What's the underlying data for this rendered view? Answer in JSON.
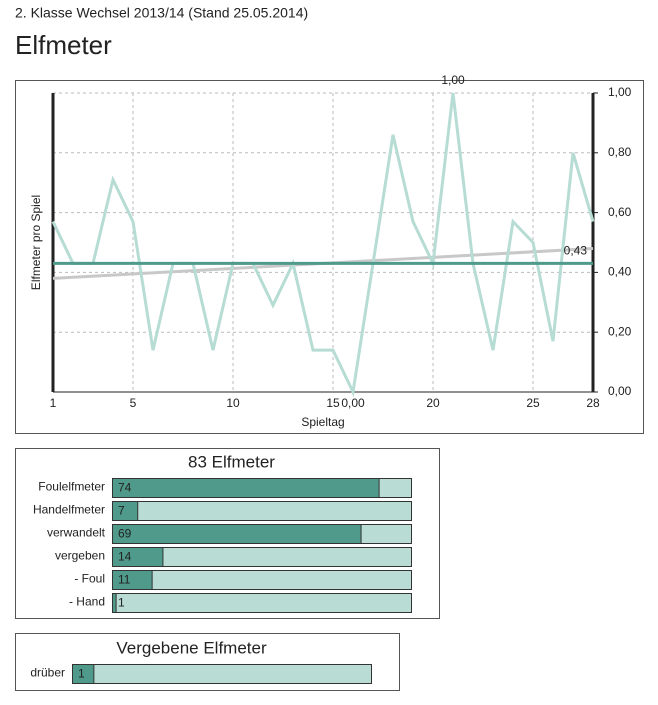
{
  "header": {
    "subtitle": "2. Klasse Wechsel 2013/14 (Stand 25.05.2014)",
    "title": "Elfmeter"
  },
  "chart_data": [
    {
      "type": "line",
      "xlabel": "Spieltag",
      "ylabel": "Elfmeter pro Spiel",
      "x": [
        1,
        2,
        3,
        4,
        5,
        6,
        7,
        8,
        9,
        10,
        11,
        12,
        13,
        14,
        15,
        16,
        17,
        18,
        19,
        20,
        21,
        22,
        23,
        24,
        25,
        26,
        27,
        28
      ],
      "series": [
        {
          "color": "#b6dcd4",
          "values": [
            0.57,
            0.43,
            0.43,
            0.71,
            0.57,
            0.14,
            0.43,
            0.43,
            0.14,
            0.43,
            0.43,
            0.29,
            0.43,
            0.14,
            0.14,
            0.0,
            0.43,
            0.86,
            0.57,
            0.43,
            1.0,
            0.43,
            0.14,
            0.57,
            0.5,
            0.17,
            0.8,
            0.57
          ],
          "value_labels": [
            null,
            null,
            null,
            null,
            null,
            null,
            null,
            null,
            null,
            null,
            null,
            null,
            null,
            null,
            null,
            "0,00",
            null,
            null,
            null,
            null,
            "1,00",
            null,
            null,
            null,
            null,
            null,
            null,
            null
          ]
        }
      ],
      "mean": {
        "value": 0.43,
        "label": "0,43",
        "color": "#4f9a8a"
      },
      "trend": {
        "x": [
          1,
          28
        ],
        "values": [
          0.38,
          0.48
        ],
        "color": "#c8c8c8"
      },
      "xlim": [
        1,
        28
      ],
      "xticks": [
        1,
        5,
        10,
        15,
        20,
        25,
        28
      ],
      "ylim": [
        0,
        1
      ],
      "yticks": [
        {
          "value": 0,
          "label": "0,00"
        },
        {
          "value": 0.2,
          "label": "0,20"
        },
        {
          "value": 0.4,
          "label": "0,40"
        },
        {
          "value": 0.6,
          "label": "0,60"
        },
        {
          "value": 0.8,
          "label": "0,80"
        },
        {
          "value": 1,
          "label": "1,00"
        }
      ],
      "grid": true
    },
    {
      "type": "hbar",
      "title": "83 Elfmeter",
      "categories": [
        "Foulelfmeter",
        "Handelfmeter",
        "verwandelt",
        "vergeben",
        "- Foul",
        "- Hand"
      ],
      "values": [
        74,
        7,
        69,
        14,
        11,
        1
      ],
      "xlim": [
        0,
        83
      ],
      "color": "#4f9a8a",
      "background": "#b9ddd5"
    },
    {
      "type": "hbar",
      "title": "Vergebene Elfmeter",
      "categories": [
        "drüber"
      ],
      "values": [
        1
      ],
      "xlim": [
        0,
        14
      ],
      "color": "#4f9a8a",
      "background": "#b9ddd5"
    }
  ]
}
